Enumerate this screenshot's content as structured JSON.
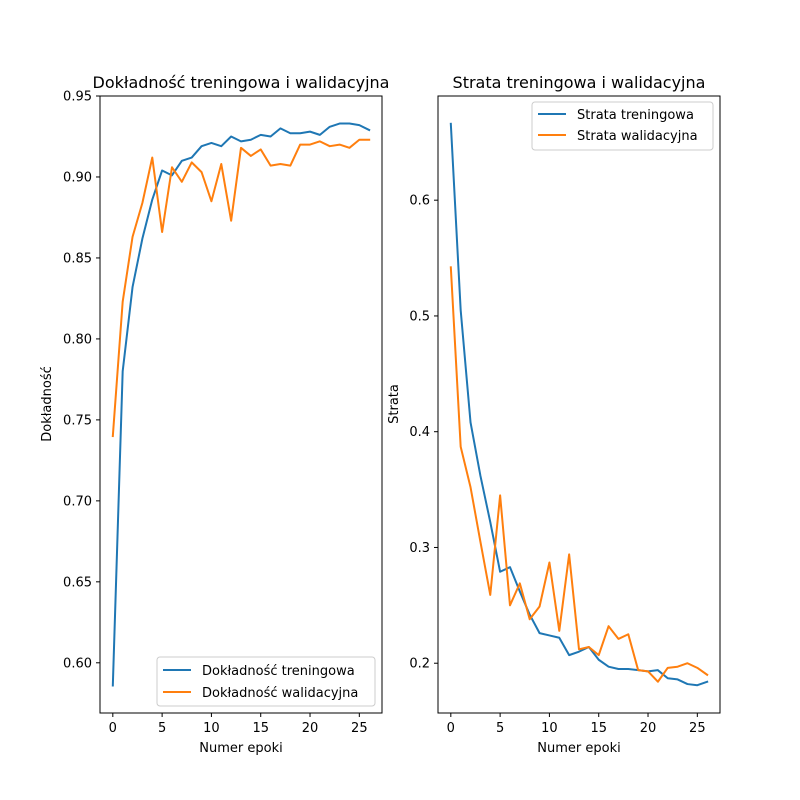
{
  "chart_data": [
    {
      "type": "line",
      "title": "Dokładność treningowa i walidacyjna",
      "xlabel": "Numer epoki",
      "ylabel": "Dokładność",
      "xlim": [
        -1.3,
        27.3
      ],
      "ylim": [
        0.569,
        0.95
      ],
      "xticks": [
        0,
        5,
        10,
        15,
        20,
        25
      ],
      "yticks": [
        0.6,
        0.65,
        0.7,
        0.75,
        0.8,
        0.85,
        0.9,
        0.95
      ],
      "ytick_labels": [
        "0.60",
        "0.65",
        "0.70",
        "0.75",
        "0.80",
        "0.85",
        "0.90",
        "0.95"
      ],
      "legend_position": "lower-right",
      "x": [
        0,
        1,
        2,
        3,
        4,
        5,
        6,
        7,
        8,
        9,
        10,
        11,
        12,
        13,
        14,
        15,
        16,
        17,
        18,
        19,
        20,
        21,
        22,
        23,
        24,
        25,
        26
      ],
      "series": [
        {
          "name": "Dokładność treningowa",
          "color": "#1f77b4",
          "values": [
            0.586,
            0.78,
            0.832,
            0.862,
            0.886,
            0.904,
            0.901,
            0.91,
            0.912,
            0.919,
            0.921,
            0.919,
            0.925,
            0.922,
            0.923,
            0.926,
            0.925,
            0.93,
            0.927,
            0.927,
            0.928,
            0.926,
            0.931,
            0.933,
            0.933,
            0.932,
            0.929
          ]
        },
        {
          "name": "Dokładność walidacyjna",
          "color": "#ff7f0e",
          "values": [
            0.74,
            0.823,
            0.863,
            0.884,
            0.912,
            0.866,
            0.906,
            0.897,
            0.909,
            0.903,
            0.885,
            0.908,
            0.873,
            0.918,
            0.913,
            0.917,
            0.907,
            0.908,
            0.907,
            0.92,
            0.92,
            0.922,
            0.919,
            0.92,
            0.918,
            0.923,
            0.923
          ]
        }
      ]
    },
    {
      "type": "line",
      "title": "Strata treningowa i walidacyjna",
      "xlabel": "Numer epoki",
      "ylabel": "Strata",
      "xlim": [
        -1.3,
        27.3
      ],
      "ylim": [
        0.157,
        0.69
      ],
      "xticks": [
        0,
        5,
        10,
        15,
        20,
        25
      ],
      "yticks": [
        0.2,
        0.3,
        0.4,
        0.5,
        0.6
      ],
      "ytick_labels": [
        "0.2",
        "0.3",
        "0.4",
        "0.5",
        "0.6"
      ],
      "legend_position": "upper-right",
      "x": [
        0,
        1,
        2,
        3,
        4,
        5,
        6,
        7,
        8,
        9,
        10,
        11,
        12,
        13,
        14,
        15,
        16,
        17,
        18,
        19,
        20,
        21,
        22,
        23,
        24,
        25,
        26
      ],
      "series": [
        {
          "name": "Strata treningowa",
          "color": "#1f77b4",
          "values": [
            0.666,
            0.505,
            0.408,
            0.362,
            0.322,
            0.279,
            0.283,
            0.262,
            0.242,
            0.226,
            0.224,
            0.222,
            0.207,
            0.21,
            0.214,
            0.203,
            0.197,
            0.195,
            0.195,
            0.194,
            0.193,
            0.194,
            0.187,
            0.186,
            0.182,
            0.181,
            0.184
          ]
        },
        {
          "name": "Strata walidacyjna",
          "color": "#ff7f0e",
          "values": [
            0.542,
            0.387,
            0.352,
            0.305,
            0.259,
            0.345,
            0.25,
            0.269,
            0.238,
            0.249,
            0.287,
            0.228,
            0.294,
            0.212,
            0.214,
            0.207,
            0.232,
            0.221,
            0.225,
            0.194,
            0.193,
            0.184,
            0.196,
            0.197,
            0.2,
            0.196,
            0.19
          ]
        }
      ]
    }
  ]
}
